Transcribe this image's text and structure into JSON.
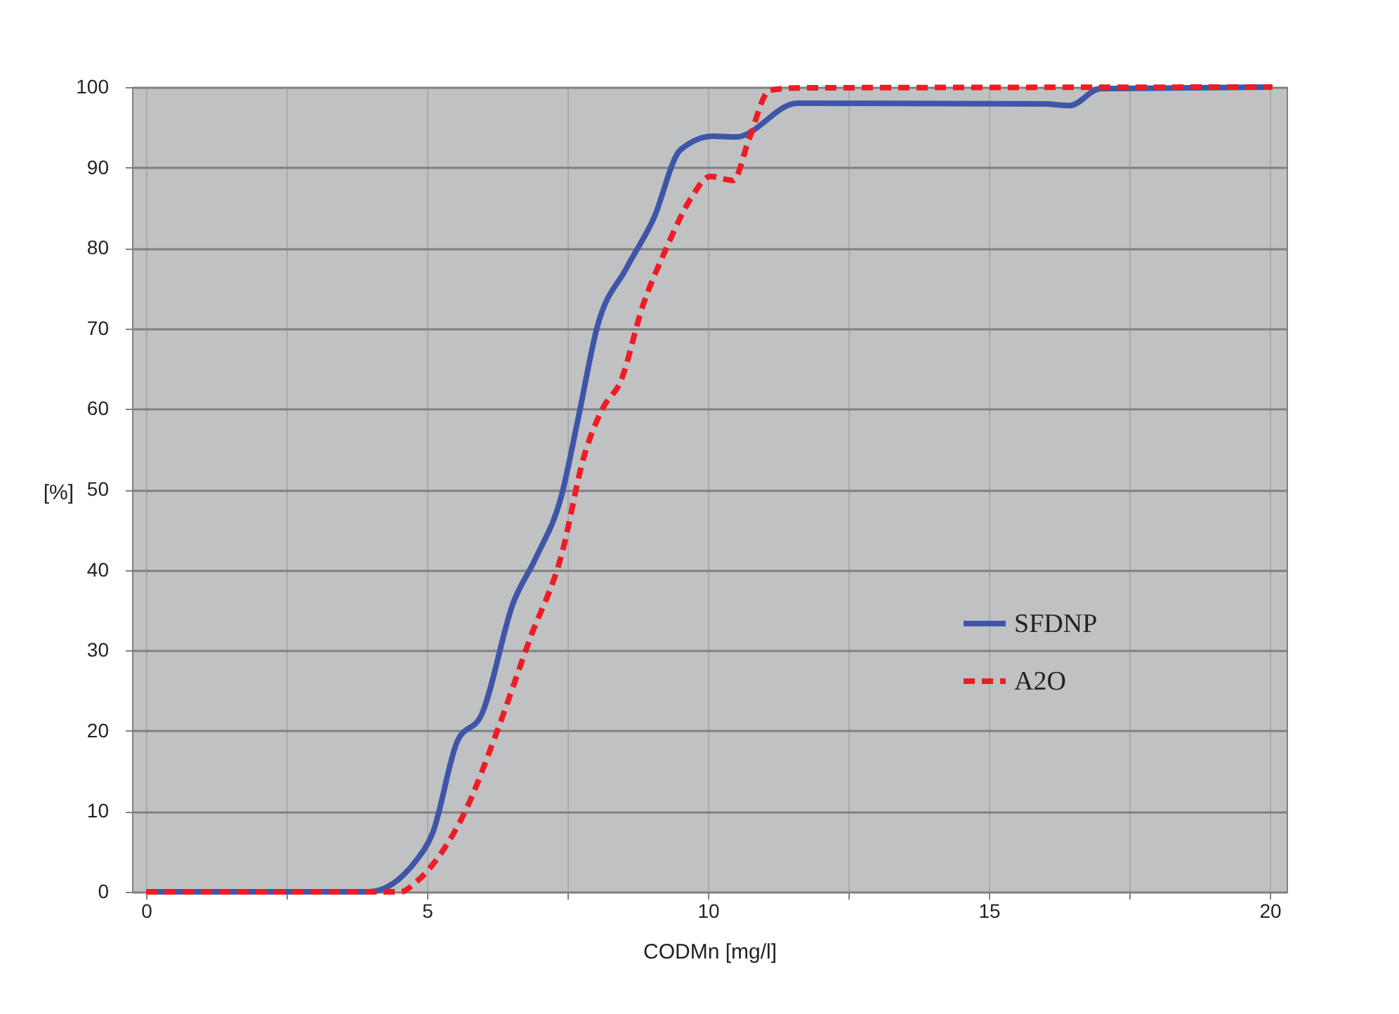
{
  "chart_data": {
    "type": "line",
    "xlabel": "CODMn [mg/l]",
    "ylabel": "[%]",
    "xlim": [
      -0.25,
      20.3
    ],
    "ylim": [
      0,
      100
    ],
    "xticks": [
      0,
      {
        "value": 2.5,
        "label": null
      },
      5,
      {
        "value": 7.5,
        "label": null
      },
      10,
      {
        "value": 12.5,
        "label": null
      },
      15,
      {
        "value": 17.5,
        "label": null
      },
      20
    ],
    "yticks": [
      0,
      10,
      20,
      30,
      40,
      50,
      60,
      70,
      80,
      90,
      100
    ],
    "grid": true,
    "legend": "right",
    "marker": "none",
    "series": [
      {
        "name": "SFDNP",
        "color": "#3f56a8",
        "line_style": "solid",
        "x": [
          0,
          3.96,
          4.82,
          5.1,
          5.54,
          5.97,
          6.54,
          6.93,
          7.4,
          7.69,
          8.03,
          8.55,
          9.03,
          9.51,
          10.09,
          10.5,
          11.59,
          16.0,
          16.44,
          16.98,
          20.05
        ],
        "values": [
          0,
          0,
          4,
          7.3,
          18.7,
          22,
          36,
          41.4,
          49.4,
          58.8,
          70.2,
          77.5,
          83.6,
          92.2,
          93.9,
          93.8,
          98,
          97.9,
          97.7,
          99.8,
          100
        ]
      },
      {
        "name": "A2O",
        "color": "#ee1c25",
        "line_style": "dashed",
        "x": [
          0,
          4.53,
          4.82,
          5.3,
          5.68,
          6.25,
          6.83,
          7.4,
          7.79,
          8.13,
          8.45,
          8.84,
          9.23,
          9.7,
          10.04,
          10.45,
          10.73,
          11.1,
          11.59,
          20.05
        ],
        "values": [
          0,
          0,
          1.3,
          5.3,
          10,
          20,
          31.4,
          42,
          54,
          60.1,
          63.5,
          72.8,
          79.5,
          86.2,
          88.9,
          88.4,
          93.5,
          99.6,
          99.9,
          100
        ]
      }
    ]
  }
}
